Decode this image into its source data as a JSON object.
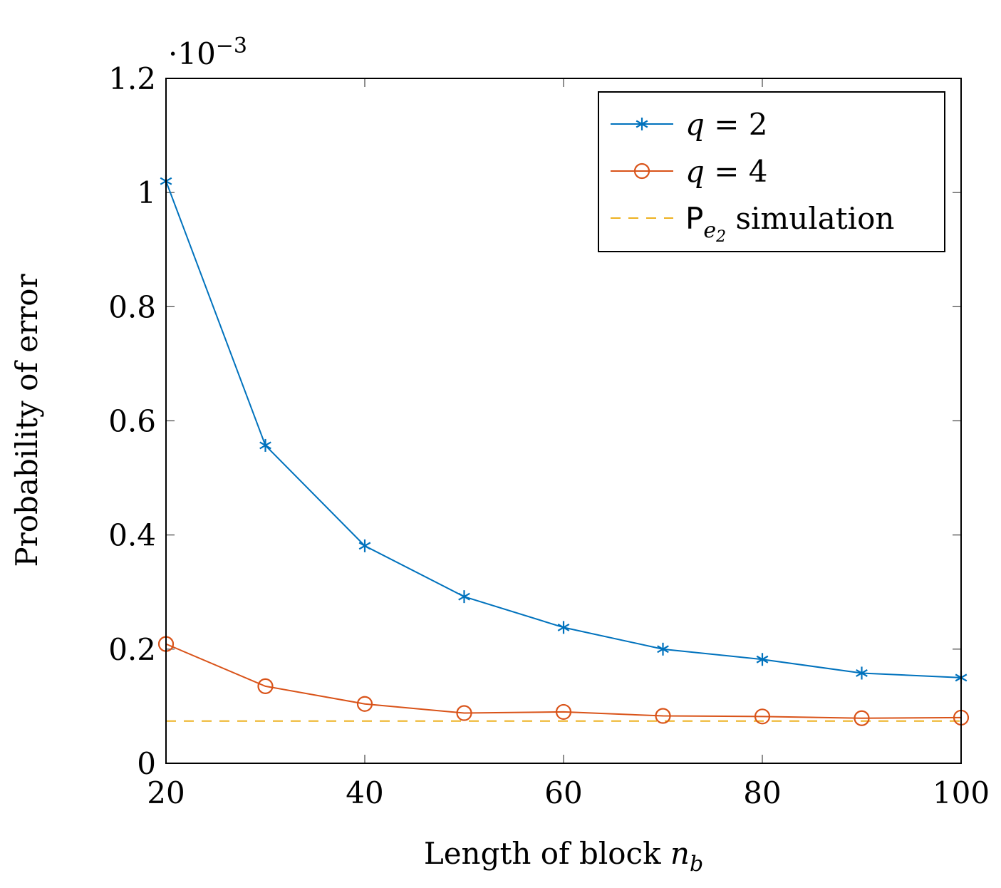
{
  "chart_data": {
    "type": "line",
    "x": [
      20,
      30,
      40,
      50,
      60,
      70,
      80,
      90,
      100
    ],
    "xlabel_main": "Length of block ",
    "xlabel_math": "n",
    "xlabel_sub": "b",
    "ylabel": "Probability of error",
    "xlim": [
      20,
      100
    ],
    "ylim": [
      0,
      1.2
    ],
    "xticks": [
      "20",
      "40",
      "60",
      "80",
      "100"
    ],
    "xtick_values": [
      20,
      40,
      60,
      80,
      100
    ],
    "yticks": [
      "0",
      "0.2",
      "0.4",
      "0.6",
      "0.8",
      "1",
      "1.2"
    ],
    "ytick_values": [
      0,
      0.2,
      0.4,
      0.6,
      0.8,
      1.0,
      1.2
    ],
    "y_scale_base": "·10",
    "y_scale_exp": "−3",
    "legend_position": "top-right",
    "grid": false,
    "series": [
      {
        "name_var": "q",
        "name_eq": " = 2",
        "color": "#0072BD",
        "marker": "asterisk",
        "values": [
          1.02,
          0.557,
          0.381,
          0.292,
          0.238,
          0.2,
          0.182,
          0.158,
          0.15
        ]
      },
      {
        "name_var": "q",
        "name_eq": " = 4",
        "color": "#D95319",
        "marker": "circle",
        "values": [
          0.209,
          0.135,
          0.104,
          0.088,
          0.09,
          0.083,
          0.082,
          0.079,
          0.08
        ]
      }
    ],
    "reference_line": {
      "name_P": "P",
      "name_sub": "e",
      "name_subsub": "2",
      "name_rest": " simulation",
      "color": "#EDB120",
      "style": "dashed",
      "value": 0.074
    }
  }
}
